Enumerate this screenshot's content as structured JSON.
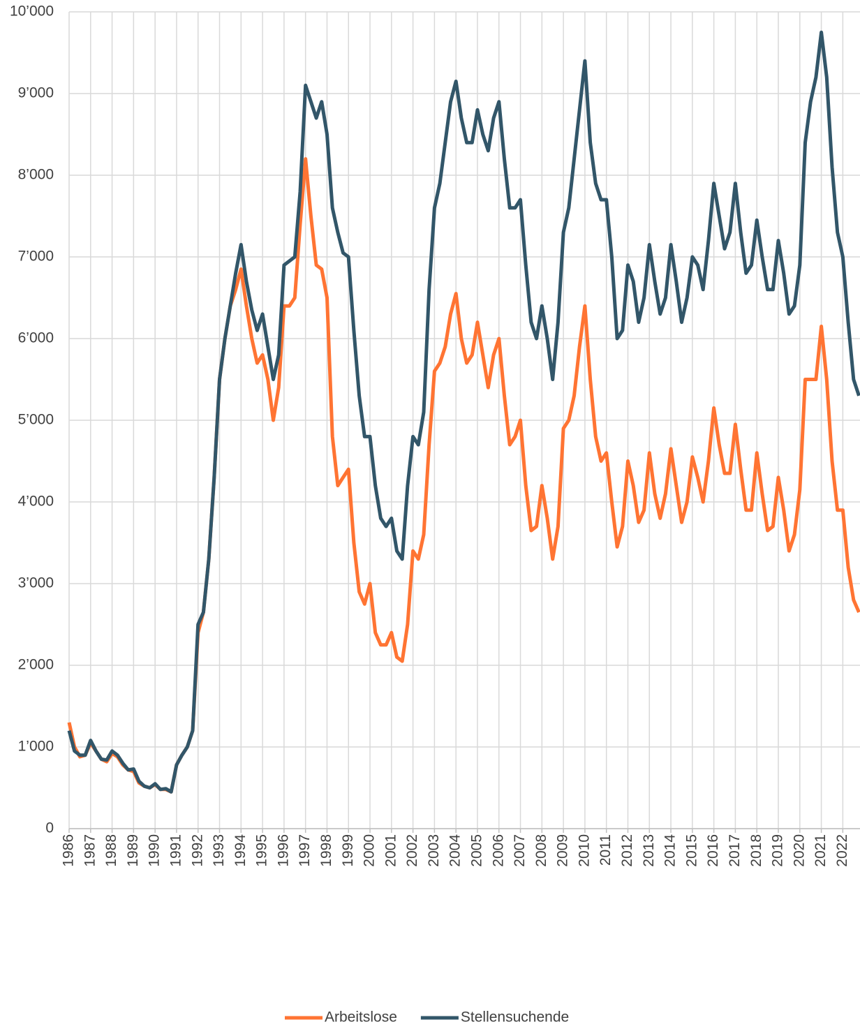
{
  "chart_data": {
    "type": "line",
    "xlim": [
      1986,
      2022.8
    ],
    "xticks": [
      1986,
      1987,
      1988,
      1989,
      1990,
      1991,
      1992,
      1993,
      1994,
      1995,
      1996,
      1997,
      1998,
      1999,
      2000,
      2001,
      2002,
      2003,
      2004,
      2005,
      2006,
      2007,
      2008,
      2009,
      2010,
      2011,
      2012,
      2013,
      2014,
      2015,
      2016,
      2017,
      2018,
      2019,
      2020,
      2021,
      2022
    ],
    "ylim": [
      0,
      10000
    ],
    "yticks": [
      0,
      {
        "value": 1000,
        "label": "1’000"
      },
      {
        "value": 2000,
        "label": "2’000"
      },
      {
        "value": 3000,
        "label": "3’000"
      },
      {
        "value": 4000,
        "label": "4’000"
      },
      {
        "value": 5000,
        "label": "5’000"
      },
      {
        "value": 6000,
        "label": "6’000"
      },
      {
        "value": 7000,
        "label": "7’000"
      },
      {
        "value": 8000,
        "label": "8’000"
      },
      {
        "value": 9000,
        "label": "9’000"
      },
      {
        "value": 10000,
        "label": "10’000"
      }
    ],
    "grid": true,
    "legend": "bottom",
    "x": [
      1986,
      1986.25,
      1986.5,
      1986.75,
      1987,
      1987.25,
      1987.5,
      1987.75,
      1988,
      1988.25,
      1988.5,
      1988.75,
      1989,
      1989.25,
      1989.5,
      1989.75,
      1990,
      1990.25,
      1990.5,
      1990.75,
      1991,
      1991.25,
      1991.5,
      1991.75,
      1992,
      1992.25,
      1992.5,
      1992.75,
      1993,
      1993.25,
      1993.5,
      1993.75,
      1994,
      1994.25,
      1994.5,
      1994.75,
      1995,
      1995.25,
      1995.5,
      1995.75,
      1996,
      1996.25,
      1996.5,
      1996.75,
      1997,
      1997.25,
      1997.5,
      1997.75,
      1998,
      1998.25,
      1998.5,
      1998.75,
      1999,
      1999.25,
      1999.5,
      1999.75,
      2000,
      2000.25,
      2000.5,
      2000.75,
      2001,
      2001.25,
      2001.5,
      2001.75,
      2002,
      2002.25,
      2002.5,
      2002.75,
      2003,
      2003.25,
      2003.5,
      2003.75,
      2004,
      2004.25,
      2004.5,
      2004.75,
      2005,
      2005.25,
      2005.5,
      2005.75,
      2006,
      2006.25,
      2006.5,
      2006.75,
      2007,
      2007.25,
      2007.5,
      2007.75,
      2008,
      2008.25,
      2008.5,
      2008.75,
      2009,
      2009.25,
      2009.5,
      2009.75,
      2010,
      2010.25,
      2010.5,
      2010.75,
      2011,
      2011.25,
      2011.5,
      2011.75,
      2012,
      2012.25,
      2012.5,
      2012.75,
      2013,
      2013.25,
      2013.5,
      2013.75,
      2014,
      2014.25,
      2014.5,
      2014.75,
      2015,
      2015.25,
      2015.5,
      2015.75,
      2016,
      2016.25,
      2016.5,
      2016.75,
      2017,
      2017.25,
      2017.5,
      2017.75,
      2018,
      2018.25,
      2018.5,
      2018.75,
      2019,
      2019.25,
      2019.5,
      2019.75,
      2020,
      2020.25,
      2020.5,
      2020.75,
      2021,
      2021.25,
      2021.5,
      2021.75,
      2022,
      2022.25,
      2022.5,
      2022.75
    ],
    "series": [
      {
        "name": "Arbeitslose",
        "color": "#ff7433",
        "values": [
          1300,
          1000,
          880,
          900,
          1050,
          950,
          850,
          820,
          920,
          880,
          780,
          720,
          700,
          560,
          520,
          500,
          540,
          480,
          480,
          450,
          780,
          900,
          1000,
          1200,
          2400,
          2650,
          3300,
          4300,
          5500,
          6000,
          6400,
          6600,
          6850,
          6400,
          6000,
          5700,
          5800,
          5500,
          5000,
          5400,
          6400,
          6400,
          6500,
          7400,
          8200,
          7500,
          6900,
          6850,
          6500,
          4800,
          4200,
          4300,
          4400,
          3500,
          2900,
          2750,
          3000,
          2400,
          2250,
          2250,
          2400,
          2100,
          2050,
          2500,
          3400,
          3300,
          3600,
          4700,
          5600,
          5700,
          5900,
          6300,
          6550,
          6000,
          5700,
          5800,
          6200,
          5800,
          5400,
          5800,
          6000,
          5300,
          4700,
          4800,
          5000,
          4200,
          3650,
          3700,
          4200,
          3800,
          3300,
          3700,
          4900,
          5000,
          5300,
          5900,
          6400,
          5500,
          4800,
          4500,
          4600,
          4000,
          3450,
          3700,
          4500,
          4200,
          3750,
          3900,
          4600,
          4100,
          3800,
          4100,
          4650,
          4200,
          3750,
          4000,
          4550,
          4300,
          4000,
          4500,
          5150,
          4700,
          4350,
          4350,
          4950,
          4400,
          3900,
          3900,
          4600,
          4100,
          3650,
          3700,
          4300,
          3900,
          3400,
          3600,
          4150,
          5500,
          5500,
          5500,
          6150,
          5500,
          4500,
          3900,
          3900,
          3200,
          2800,
          2650
        ]
      },
      {
        "name": "Stellensuchende",
        "color": "#325669",
        "values": [
          1200,
          950,
          900,
          900,
          1080,
          950,
          850,
          840,
          950,
          900,
          800,
          720,
          730,
          580,
          520,
          500,
          550,
          480,
          490,
          450,
          780,
          900,
          1000,
          1200,
          2500,
          2650,
          3300,
          4300,
          5500,
          6000,
          6400,
          6800,
          7150,
          6700,
          6350,
          6100,
          6300,
          5900,
          5500,
          5800,
          6900,
          6950,
          7000,
          7800,
          9100,
          8900,
          8700,
          8900,
          8500,
          7600,
          7300,
          7050,
          7000,
          6100,
          5300,
          4800,
          4800,
          4200,
          3800,
          3700,
          3800,
          3400,
          3300,
          4200,
          4800,
          4700,
          5100,
          6600,
          7600,
          7900,
          8400,
          8900,
          9150,
          8700,
          8400,
          8400,
          8800,
          8500,
          8300,
          8700,
          8900,
          8200,
          7600,
          7600,
          7700,
          6900,
          6200,
          6000,
          6400,
          6000,
          5500,
          6200,
          7300,
          7600,
          8200,
          8800,
          9400,
          8400,
          7900,
          7700,
          7700,
          7000,
          6000,
          6100,
          6900,
          6700,
          6200,
          6500,
          7150,
          6700,
          6300,
          6500,
          7150,
          6700,
          6200,
          6500,
          7000,
          6900,
          6600,
          7200,
          7900,
          7500,
          7100,
          7300,
          7900,
          7300,
          6800,
          6900,
          7450,
          7000,
          6600,
          6600,
          7200,
          6800,
          6300,
          6400,
          6900,
          8400,
          8900,
          9200,
          9750,
          9200,
          8100,
          7300,
          7000,
          6200,
          5500,
          5300
        ]
      }
    ]
  }
}
